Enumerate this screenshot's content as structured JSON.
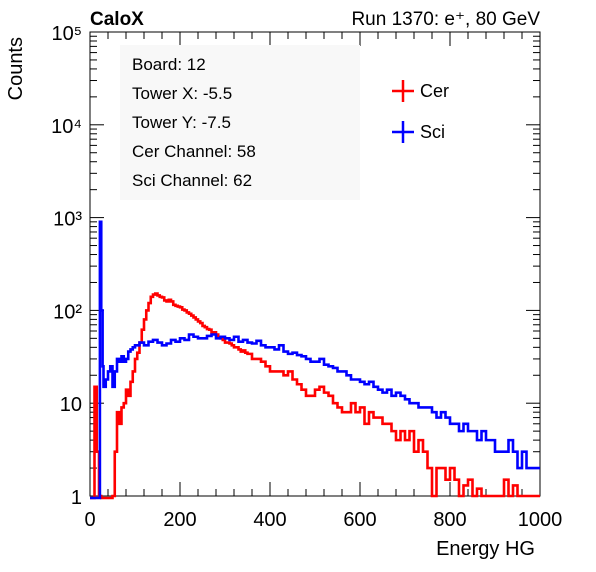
{
  "chart_data": {
    "type": "line",
    "title_left": "CaloX",
    "title_right": "Run 1370: e⁺, 80 GeV",
    "xlabel": "Energy HG",
    "ylabel": "Counts",
    "xlim": [
      0,
      1000
    ],
    "ylim": [
      1,
      100000
    ],
    "yscale": "log",
    "x_ticks": [
      "0",
      "200",
      "400",
      "600",
      "800",
      "1000"
    ],
    "y_ticks": [
      "1",
      "10",
      "10²",
      "10³",
      "10⁴",
      "10⁵"
    ],
    "info_lines": [
      "Board: 12",
      "Tower X: -5.5",
      "Tower Y: -7.5",
      "Cer Channel: 58",
      "Sci Channel: 62"
    ],
    "legend_position": "top-right",
    "series": [
      {
        "name": "Cer",
        "color": "#ff0000",
        "points": [
          [
            0,
            0
          ],
          [
            5,
            0
          ],
          [
            10,
            15
          ],
          [
            15,
            3
          ],
          [
            20,
            1
          ],
          [
            25,
            0
          ],
          [
            30,
            0
          ],
          [
            40,
            0
          ],
          [
            45,
            0
          ],
          [
            50,
            1
          ],
          [
            55,
            3
          ],
          [
            60,
            8
          ],
          [
            65,
            6
          ],
          [
            70,
            9
          ],
          [
            75,
            10
          ],
          [
            80,
            14
          ],
          [
            85,
            12
          ],
          [
            90,
            17
          ],
          [
            95,
            22
          ],
          [
            100,
            30
          ],
          [
            105,
            35
          ],
          [
            110,
            45
          ],
          [
            115,
            62
          ],
          [
            120,
            80
          ],
          [
            125,
            100
          ],
          [
            130,
            120
          ],
          [
            135,
            140
          ],
          [
            140,
            148
          ],
          [
            145,
            152
          ],
          [
            150,
            145
          ],
          [
            155,
            140
          ],
          [
            160,
            138
          ],
          [
            165,
            128
          ],
          [
            170,
            125
          ],
          [
            175,
            130
          ],
          [
            180,
            125
          ],
          [
            185,
            115
          ],
          [
            190,
            112
          ],
          [
            195,
            110
          ],
          [
            200,
            108
          ],
          [
            205,
            102
          ],
          [
            210,
            100
          ],
          [
            215,
            95
          ],
          [
            220,
            92
          ],
          [
            225,
            88
          ],
          [
            230,
            84
          ],
          [
            235,
            80
          ],
          [
            240,
            76
          ],
          [
            245,
            73
          ],
          [
            250,
            68
          ],
          [
            255,
            66
          ],
          [
            260,
            63
          ],
          [
            265,
            62
          ],
          [
            270,
            58
          ],
          [
            275,
            58
          ],
          [
            280,
            55
          ],
          [
            285,
            52
          ],
          [
            290,
            50
          ],
          [
            295,
            48
          ],
          [
            300,
            45
          ],
          [
            305,
            45
          ],
          [
            310,
            44
          ],
          [
            315,
            42
          ],
          [
            320,
            40
          ],
          [
            325,
            40
          ],
          [
            330,
            38
          ],
          [
            335,
            36
          ],
          [
            340,
            37
          ],
          [
            345,
            35
          ],
          [
            350,
            34
          ],
          [
            360,
            30
          ],
          [
            370,
            30
          ],
          [
            380,
            28
          ],
          [
            390,
            25
          ],
          [
            400,
            22
          ],
          [
            410,
            22
          ],
          [
            420,
            22
          ],
          [
            430,
            20
          ],
          [
            440,
            22
          ],
          [
            450,
            18
          ],
          [
            460,
            16
          ],
          [
            470,
            14
          ],
          [
            480,
            12
          ],
          [
            490,
            12
          ],
          [
            500,
            14
          ],
          [
            510,
            15
          ],
          [
            520,
            13
          ],
          [
            530,
            12
          ],
          [
            540,
            10
          ],
          [
            550,
            9
          ],
          [
            560,
            8
          ],
          [
            570,
            8
          ],
          [
            580,
            10
          ],
          [
            590,
            8
          ],
          [
            600,
            9
          ],
          [
            610,
            6
          ],
          [
            620,
            8
          ],
          [
            630,
            7
          ],
          [
            640,
            7
          ],
          [
            650,
            6
          ],
          [
            660,
            6
          ],
          [
            670,
            5
          ],
          [
            680,
            4
          ],
          [
            690,
            5
          ],
          [
            700,
            4
          ],
          [
            710,
            5
          ],
          [
            720,
            3
          ],
          [
            730,
            4
          ],
          [
            740,
            3
          ],
          [
            750,
            2
          ],
          [
            760,
            1
          ],
          [
            770,
            2
          ],
          [
            780,
            2
          ],
          [
            790,
            1.5
          ],
          [
            800,
            2
          ],
          [
            810,
            1.5
          ],
          [
            820,
            1
          ],
          [
            830,
            1.3
          ],
          [
            840,
            1.5
          ],
          [
            850,
            1
          ],
          [
            860,
            1.2
          ],
          [
            870,
            1
          ],
          [
            880,
            1
          ],
          [
            890,
            1
          ],
          [
            900,
            1
          ],
          [
            910,
            1
          ],
          [
            920,
            1.5
          ],
          [
            930,
            1
          ],
          [
            940,
            1.3
          ],
          [
            950,
            1
          ],
          [
            960,
            1
          ],
          [
            970,
            1
          ],
          [
            980,
            1
          ],
          [
            990,
            1
          ],
          [
            1000,
            1
          ]
        ]
      },
      {
        "name": "Sci",
        "color": "#0000ff",
        "points": [
          [
            0,
            0
          ],
          [
            10,
            0
          ],
          [
            15,
            0
          ],
          [
            20,
            0
          ],
          [
            22,
            900
          ],
          [
            25,
            100
          ],
          [
            28,
            25
          ],
          [
            30,
            15
          ],
          [
            35,
            18
          ],
          [
            40,
            22
          ],
          [
            45,
            25
          ],
          [
            50,
            15
          ],
          [
            55,
            22
          ],
          [
            60,
            30
          ],
          [
            65,
            28
          ],
          [
            70,
            32
          ],
          [
            75,
            28
          ],
          [
            80,
            30
          ],
          [
            85,
            36
          ],
          [
            90,
            38
          ],
          [
            95,
            40
          ],
          [
            100,
            42
          ],
          [
            110,
            45
          ],
          [
            120,
            42
          ],
          [
            130,
            46
          ],
          [
            140,
            48
          ],
          [
            150,
            45
          ],
          [
            160,
            42
          ],
          [
            170,
            44
          ],
          [
            180,
            48
          ],
          [
            190,
            46
          ],
          [
            200,
            50
          ],
          [
            210,
            48
          ],
          [
            220,
            55
          ],
          [
            230,
            52
          ],
          [
            240,
            50
          ],
          [
            250,
            50
          ],
          [
            260,
            53
          ],
          [
            270,
            55
          ],
          [
            280,
            50
          ],
          [
            290,
            52
          ],
          [
            300,
            50
          ],
          [
            310,
            48
          ],
          [
            320,
            52
          ],
          [
            330,
            46
          ],
          [
            340,
            48
          ],
          [
            350,
            45
          ],
          [
            360,
            44
          ],
          [
            370,
            47
          ],
          [
            380,
            42
          ],
          [
            390,
            40
          ],
          [
            400,
            40
          ],
          [
            410,
            38
          ],
          [
            420,
            42
          ],
          [
            430,
            36
          ],
          [
            440,
            34
          ],
          [
            450,
            35
          ],
          [
            460,
            33
          ],
          [
            470,
            32
          ],
          [
            480,
            30
          ],
          [
            490,
            28
          ],
          [
            500,
            28
          ],
          [
            510,
            30
          ],
          [
            520,
            26
          ],
          [
            530,
            25
          ],
          [
            540,
            24
          ],
          [
            550,
            22
          ],
          [
            560,
            22
          ],
          [
            570,
            20
          ],
          [
            580,
            18
          ],
          [
            590,
            18
          ],
          [
            600,
            17
          ],
          [
            610,
            16
          ],
          [
            620,
            17
          ],
          [
            630,
            15
          ],
          [
            640,
            14
          ],
          [
            650,
            13
          ],
          [
            660,
            14
          ],
          [
            670,
            12
          ],
          [
            680,
            13
          ],
          [
            690,
            12
          ],
          [
            700,
            11
          ],
          [
            710,
            10
          ],
          [
            720,
            10
          ],
          [
            730,
            9
          ],
          [
            740,
            9
          ],
          [
            750,
            9
          ],
          [
            760,
            8
          ],
          [
            770,
            7
          ],
          [
            780,
            8
          ],
          [
            790,
            7
          ],
          [
            800,
            6
          ],
          [
            810,
            6
          ],
          [
            820,
            5
          ],
          [
            830,
            6
          ],
          [
            840,
            5
          ],
          [
            850,
            5
          ],
          [
            860,
            4
          ],
          [
            870,
            5
          ],
          [
            880,
            4
          ],
          [
            890,
            4
          ],
          [
            900,
            3
          ],
          [
            910,
            3
          ],
          [
            920,
            3
          ],
          [
            930,
            4
          ],
          [
            940,
            3
          ],
          [
            950,
            2
          ],
          [
            960,
            3
          ],
          [
            970,
            2
          ],
          [
            980,
            2
          ],
          [
            990,
            2
          ],
          [
            1000,
            2
          ]
        ]
      }
    ]
  }
}
